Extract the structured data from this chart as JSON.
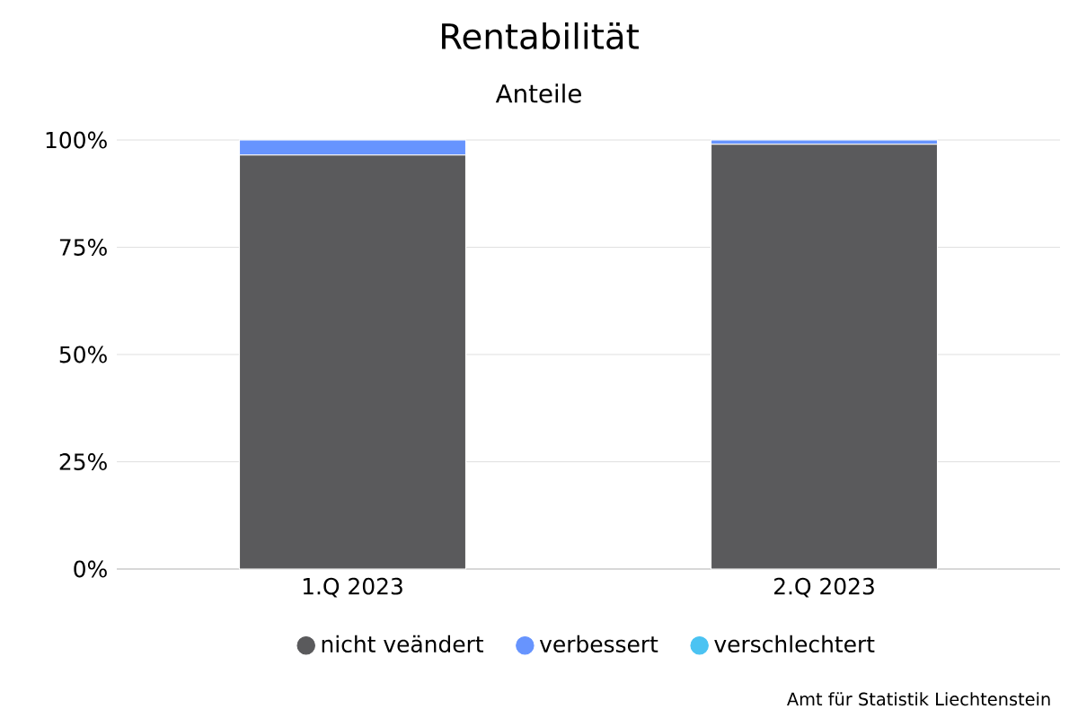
{
  "chart_data": {
    "type": "bar",
    "title": "Rentabilität",
    "subtitle": "Anteile",
    "stacked": true,
    "categories": [
      "1.Q 2023",
      "2.Q 2023"
    ],
    "series": [
      {
        "name": "nicht veändert",
        "color": "#5a5a5c",
        "values": [
          96.5,
          99
        ]
      },
      {
        "name": "verbessert",
        "color": "#6794fe",
        "values": [
          3.5,
          1
        ]
      },
      {
        "name": "verschlechtert",
        "color": "#4bc3f2",
        "values": [
          0,
          0
        ]
      }
    ],
    "ylim": [
      0,
      100
    ],
    "yticks": [
      {
        "value": 0,
        "label": "0%"
      },
      {
        "value": 25,
        "label": "25%"
      },
      {
        "value": 50,
        "label": "50%"
      },
      {
        "value": 75,
        "label": "75%"
      },
      {
        "value": 100,
        "label": "100%"
      }
    ],
    "grid": "y",
    "legend": "bottom",
    "marker": "circle",
    "annotations": [
      "Amt für Statistik Liechtenstein"
    ]
  }
}
